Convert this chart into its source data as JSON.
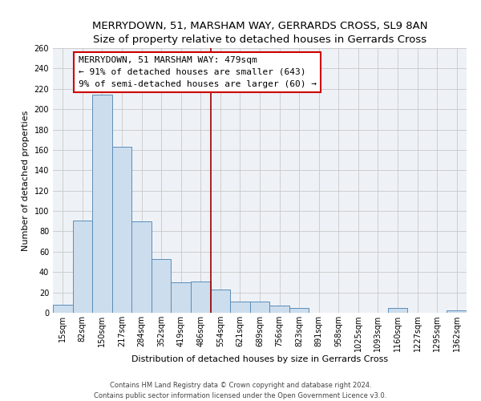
{
  "title": "MERRYDOWN, 51, MARSHAM WAY, GERRARDS CROSS, SL9 8AN",
  "subtitle": "Size of property relative to detached houses in Gerrards Cross",
  "xlabel": "Distribution of detached houses by size in Gerrards Cross",
  "ylabel": "Number of detached properties",
  "bar_labels": [
    "15sqm",
    "82sqm",
    "150sqm",
    "217sqm",
    "284sqm",
    "352sqm",
    "419sqm",
    "486sqm",
    "554sqm",
    "621sqm",
    "689sqm",
    "756sqm",
    "823sqm",
    "891sqm",
    "958sqm",
    "1025sqm",
    "1093sqm",
    "1160sqm",
    "1227sqm",
    "1295sqm",
    "1362sqm"
  ],
  "bar_values": [
    8,
    91,
    214,
    163,
    90,
    53,
    30,
    31,
    23,
    11,
    11,
    7,
    5,
    0,
    0,
    0,
    0,
    5,
    0,
    0,
    2
  ],
  "bar_color": "#ccdded",
  "bar_edge_color": "#5b8db8",
  "bar_width": 1.0,
  "vline_x": 7.5,
  "vline_color": "#990000",
  "ylim": [
    0,
    260
  ],
  "yticks": [
    0,
    20,
    40,
    60,
    80,
    100,
    120,
    140,
    160,
    180,
    200,
    220,
    240,
    260
  ],
  "annotation_line1": "MERRYDOWN, 51 MARSHAM WAY: 479sqm",
  "annotation_line2": "← 91% of detached houses are smaller (643)",
  "annotation_line3": "9% of semi-detached houses are larger (60) →",
  "footer_line1": "Contains HM Land Registry data © Crown copyright and database right 2024.",
  "footer_line2": "Contains public sector information licensed under the Open Government Licence v3.0.",
  "bg_color": "#eef2f7",
  "grid_color": "#c8c8c8",
  "title_fontsize": 9.5,
  "axis_label_fontsize": 8,
  "tick_fontsize": 7,
  "annotation_fontsize": 8,
  "footer_fontsize": 6
}
